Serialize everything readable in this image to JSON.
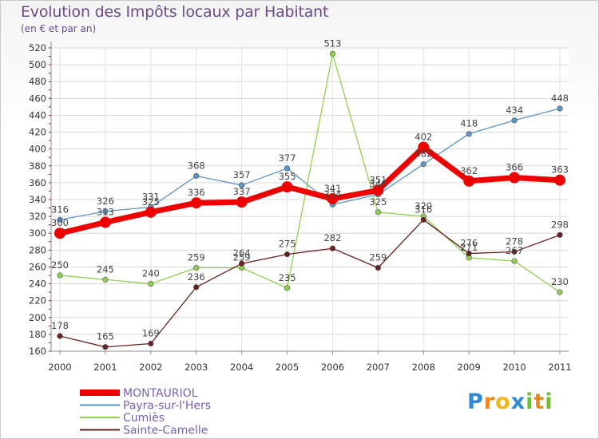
{
  "header": {
    "title": "Evolution des Impôts locaux par Habitant",
    "subtitle": "(en € et par an)"
  },
  "logo": {
    "text": "Proxiti",
    "letters": [
      "P",
      "r",
      "o",
      "x",
      "i",
      "t",
      "i"
    ],
    "colors": [
      "#2f8ad6",
      "#e8891f",
      "#f2b51c",
      "#2f8ad6",
      "#6cbd3a",
      "#e8891f",
      "#6cbd3a"
    ]
  },
  "chart_data": {
    "type": "line",
    "title": "Evolution des Impôts locaux par Habitant",
    "subtitle": "(en € et par an)",
    "xlabel": "",
    "ylabel": "",
    "categories": [
      "2000",
      "2001",
      "2002",
      "2003",
      "2004",
      "2005",
      "2006",
      "2007",
      "2008",
      "2009",
      "2010",
      "2011"
    ],
    "ylim": [
      160,
      520
    ],
    "yticks": [
      160,
      180,
      200,
      220,
      240,
      260,
      280,
      300,
      320,
      340,
      360,
      380,
      400,
      420,
      440,
      460,
      480,
      500,
      520
    ],
    "grid": true,
    "legend_position": "bottom-left",
    "series": [
      {
        "name": "MONTAURIOL",
        "color": "#ee0000",
        "values": [
          300,
          313,
          325,
          336,
          337,
          355,
          341,
          351,
          402,
          362,
          366,
          363
        ],
        "labels": [
          "300",
          "313",
          "325",
          "336",
          "337",
          "355",
          "341",
          "351",
          "402",
          "362",
          "366",
          "363"
        ]
      },
      {
        "name": "Payra-sur-l'Hers",
        "color": "#5b95c9",
        "values": [
          316,
          326,
          331,
          368,
          357,
          377,
          334,
          346,
          382,
          418,
          434,
          448
        ],
        "labels": [
          "316",
          "326",
          "331",
          "368",
          "357",
          "377",
          "334",
          "346",
          "382",
          "418",
          "434",
          "448"
        ]
      },
      {
        "name": "Cumiès",
        "color": "#8fd14f",
        "values": [
          250,
          245,
          240,
          259,
          259,
          235,
          513,
          325,
          320,
          271,
          267,
          230
        ],
        "labels": [
          "250",
          "245",
          "240",
          "259",
          "259",
          "235",
          "513",
          "325",
          "320",
          "271",
          "267",
          "230"
        ]
      },
      {
        "name": "Sainte-Camelle",
        "color": "#6b1f1f",
        "values": [
          178,
          165,
          169,
          236,
          264,
          275,
          282,
          259,
          316,
          276,
          278,
          298
        ],
        "labels": [
          "178",
          "165",
          "169",
          "236",
          "264",
          "275",
          "282",
          "259",
          "316",
          "276",
          "278",
          "298"
        ]
      }
    ]
  }
}
